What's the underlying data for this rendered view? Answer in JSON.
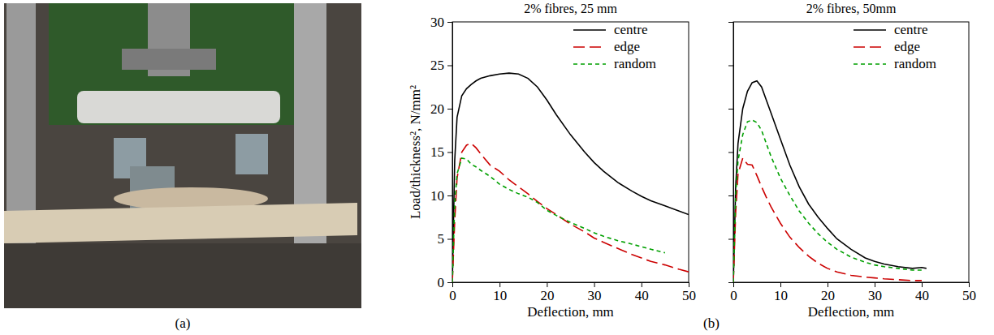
{
  "panel_labels": [
    "(a)",
    "(b)"
  ],
  "chart_data": [
    {
      "type": "line",
      "title": "2% fibres, 25 mm",
      "x_label": "Deflection, mm",
      "y_label": "Load/thickness², N/mm²",
      "x": [
        0,
        0.5,
        1,
        2,
        3,
        4,
        5,
        6,
        8,
        10,
        12,
        14,
        16,
        18,
        20,
        22,
        25,
        28,
        30,
        32,
        35,
        38,
        40,
        42,
        45,
        48,
        50
      ],
      "series": [
        {
          "name": "centre",
          "color": "#000000",
          "line_style": "solid",
          "values": [
            0,
            14,
            19,
            21.5,
            22.3,
            22.8,
            23.2,
            23.5,
            23.8,
            24,
            24.1,
            24,
            23.5,
            22.5,
            21,
            19.3,
            17,
            15,
            13.8,
            12.8,
            11.5,
            10.5,
            9.9,
            9.4,
            8.8,
            8.2,
            7.8
          ]
        },
        {
          "name": "edge",
          "color": "#cc0000",
          "line_style": "long-dash",
          "values": [
            0,
            7,
            12,
            15,
            15.8,
            16,
            15.5,
            14.8,
            13.5,
            12.8,
            11.8,
            11,
            10.2,
            9.3,
            8.5,
            7.8,
            6.7,
            5.8,
            5.1,
            4.6,
            3.9,
            3.2,
            2.8,
            2.4,
            2,
            1.5,
            1.2
          ]
        },
        {
          "name": "random",
          "color": "#00a000",
          "line_style": "dashed",
          "values": [
            0,
            9,
            12.5,
            14.3,
            14.2,
            13.6,
            13.3,
            12.9,
            12.2,
            11.3,
            10.7,
            10.2,
            9.8,
            9.2,
            8.3,
            7.7,
            6.9,
            6.2,
            5.7,
            5.3,
            4.8,
            4.4,
            4.1,
            3.8,
            3.4,
            null,
            null
          ]
        }
      ],
      "xlim": [
        0,
        50
      ],
      "xticks": [
        0,
        10,
        20,
        30,
        40,
        50
      ],
      "ylim": [
        0,
        30
      ],
      "yticks": [
        0,
        5,
        10,
        15,
        20,
        25,
        30
      ],
      "legend": "upper right",
      "grid": false
    },
    {
      "type": "line",
      "title": "2% fibres, 50mm",
      "x_label": "Deflection, mm",
      "x": [
        0,
        0.5,
        1,
        2,
        3,
        4,
        5,
        6,
        7,
        8,
        10,
        12,
        14,
        16,
        18,
        20,
        22,
        25,
        28,
        30,
        32,
        35,
        38,
        40,
        41
      ],
      "series": [
        {
          "name": "centre",
          "color": "#000000",
          "line_style": "solid",
          "values": [
            0,
            11,
            16,
            20,
            22,
            23,
            23.2,
            22.5,
            21,
            19.5,
            16.5,
            13.5,
            11,
            9,
            7.5,
            6.2,
            5,
            3.8,
            2.8,
            2.4,
            2.1,
            1.8,
            1.6,
            1.7,
            1.6
          ]
        },
        {
          "name": "edge",
          "color": "#cc0000",
          "line_style": "long-dash",
          "values": [
            0,
            8,
            12.5,
            14.3,
            13.6,
            13.5,
            12.3,
            11,
            9.8,
            8.7,
            6.8,
            5.2,
            4,
            3,
            2.2,
            1.6,
            1.2,
            0.8,
            0.6,
            0.5,
            0.4,
            0.3,
            0.2,
            0.2,
            null
          ]
        },
        {
          "name": "random",
          "color": "#00a000",
          "line_style": "dashed",
          "values": [
            0,
            10,
            14,
            17,
            18.5,
            18.7,
            18.4,
            17.5,
            16,
            14.5,
            12,
            10,
            8.2,
            6.8,
            5.6,
            4.6,
            3.8,
            2.9,
            2.3,
            2,
            1.8,
            1.6,
            1.4,
            1.4,
            null
          ]
        }
      ],
      "xlim": [
        0,
        50
      ],
      "xticks": [
        0,
        10,
        20,
        30,
        40,
        50
      ],
      "ylim": [
        0,
        30
      ],
      "yticks": [
        0,
        5,
        10,
        15,
        20,
        25,
        30
      ],
      "legend": "upper right",
      "grid": false,
      "tick_labels": "x"
    }
  ]
}
